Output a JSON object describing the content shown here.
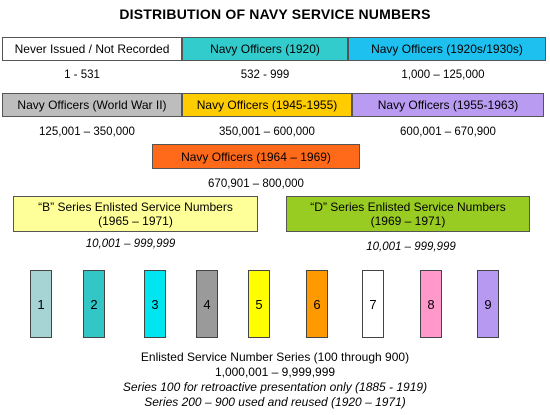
{
  "title": "DISTRIBUTION OF NAVY SERVICE NUMBERS",
  "row1": [
    {
      "label": "Never Issued / Not Recorded",
      "range": "1 - 531",
      "color": "#ffffff"
    },
    {
      "label": "Navy Officers (1920)",
      "range": "532 - 999",
      "color": "#33cccc"
    },
    {
      "label": "Navy Officers (1920s/1930s)",
      "range": "1,000 – 125,000",
      "color": "#1ec0ef"
    }
  ],
  "row2": [
    {
      "label": "Navy Officers (World War II)",
      "range": "125,001 – 350,000",
      "color": "#bdbdbd"
    },
    {
      "label": "Navy Officers (1945-1955)",
      "range": "350,001 – 600,000",
      "color": "#ffcc00"
    },
    {
      "label": "Navy Officers (1955-1963)",
      "range": "600,001 – 670,900",
      "color": "#b99cf2"
    }
  ],
  "row3": {
    "label": "Navy Officers (1964 – 1969)",
    "range": "670,901 – 800,000",
    "color": "#ff6a1a"
  },
  "b_series": {
    "line1": "“B” Series Enlisted Service Numbers",
    "line2": "(1965 – 1971)",
    "range": "10,001 – 999,999",
    "color": "#ffff99"
  },
  "d_series": {
    "line1": "“D” Series Enlisted Service Numbers",
    "line2": "(1969 – 1971)",
    "range": "10,001 – 999,999",
    "color": "#99cc22"
  },
  "series_bars": [
    {
      "digit": "1",
      "color": "#a6d4d4"
    },
    {
      "digit": "2",
      "color": "#33c6c6"
    },
    {
      "digit": "3",
      "color": "#00e6f0"
    },
    {
      "digit": "4",
      "color": "#9a9a9a"
    },
    {
      "digit": "5",
      "color": "#ffff00"
    },
    {
      "digit": "6",
      "color": "#ff9900"
    },
    {
      "digit": "7",
      "color": "#ffffff"
    },
    {
      "digit": "8",
      "color": "#ff99cc"
    },
    {
      "digit": "9",
      "color": "#b899f2"
    }
  ],
  "footer": {
    "line1": "Enlisted Service Number Series (100 through 900)",
    "line2": "1,000,001 – 9,999,999",
    "line3": "Series 100 for retroactive presentation only (1885 - 1919)",
    "line4": "Series 200 – 900 used and reused (1920 – 1971)"
  }
}
